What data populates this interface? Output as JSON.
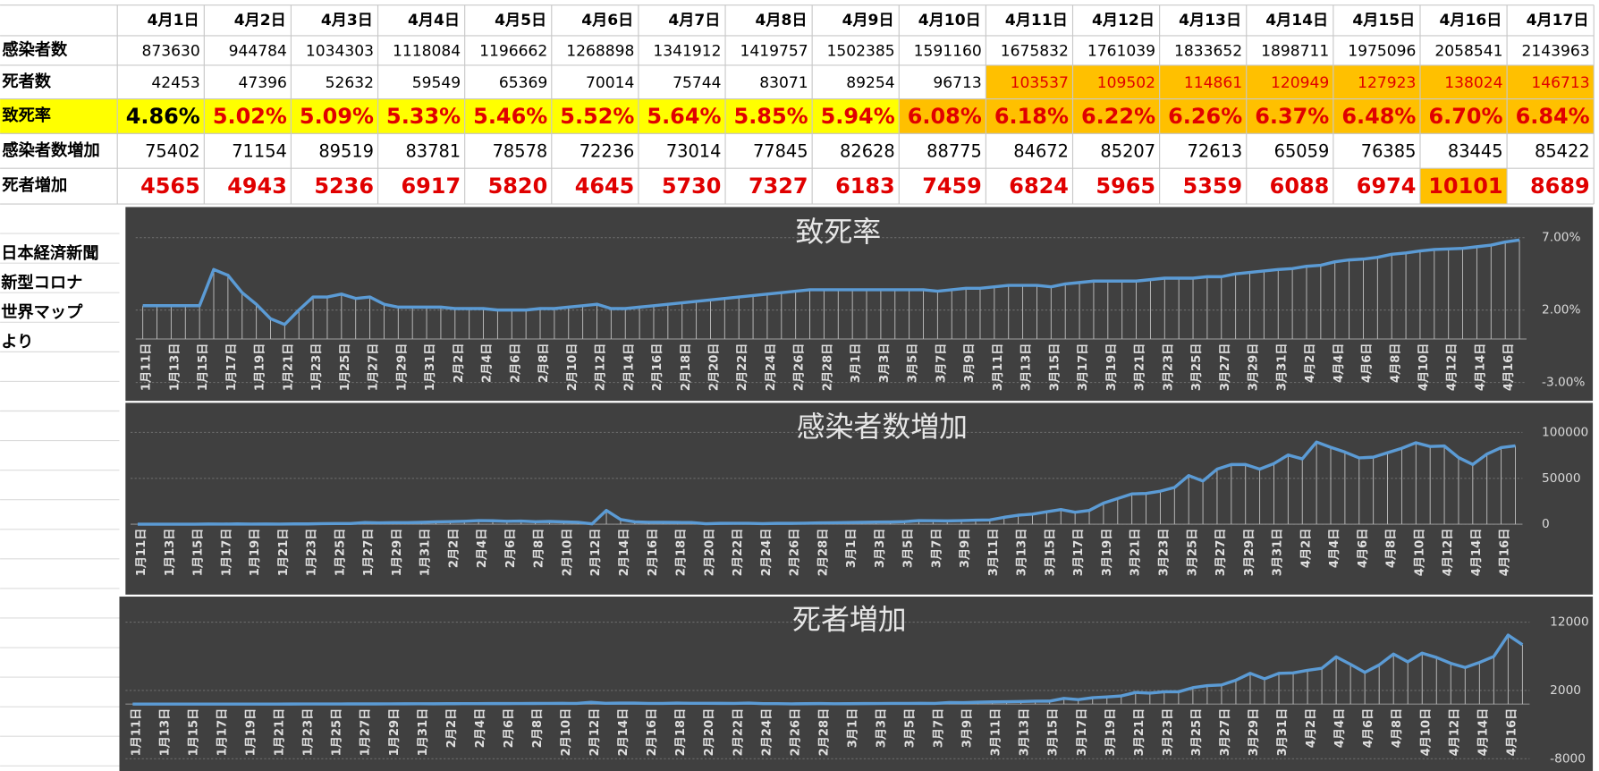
{
  "table": {
    "header": [
      "4月1日",
      "4月2日",
      "4月3日",
      "4月4日",
      "4月5日",
      "4月6日",
      "4月7日",
      "4月8日",
      "4月9日",
      "4月10日",
      "4月11日",
      "4月12日",
      "4月13日",
      "4月14日",
      "4月15日",
      "4月16日",
      "4月17日"
    ],
    "rows": [
      {
        "label": "感染者数",
        "values": [
          873630,
          944784,
          1034303,
          1118084,
          1196662,
          1268898,
          1341912,
          1419757,
          1502385,
          1591160,
          1675832,
          1761039,
          1833652,
          1898711,
          1975096,
          2058541,
          2143963
        ]
      },
      {
        "label": "死者数",
        "values": [
          42453,
          47396,
          52632,
          59549,
          65369,
          70014,
          75744,
          83071,
          89254,
          96713,
          103537,
          109502,
          114861,
          120949,
          127923,
          138024,
          146713
        ]
      },
      {
        "label": "致死率",
        "values": [
          "4.86%",
          "5.02%",
          "5.09%",
          "5.33%",
          "5.46%",
          "5.52%",
          "5.64%",
          "5.85%",
          "5.94%",
          "6.08%",
          "6.18%",
          "6.22%",
          "6.26%",
          "6.37%",
          "6.48%",
          "6.70%",
          "6.84%"
        ]
      },
      {
        "label": "感染者数増加",
        "values": [
          75402,
          71154,
          89519,
          83781,
          78578,
          72236,
          73014,
          77845,
          82628,
          88775,
          84672,
          85207,
          72613,
          65059,
          76385,
          83445,
          85422
        ]
      },
      {
        "label": "死者増加",
        "values": [
          4565,
          4943,
          5236,
          6917,
          5820,
          4645,
          5730,
          7327,
          6183,
          7459,
          6824,
          5965,
          5359,
          6088,
          6974,
          10101,
          8689
        ]
      }
    ]
  },
  "note": [
    "日本経済新聞",
    "新型コロナ",
    "世界マップ",
    "より"
  ],
  "chart_data": [
    {
      "type": "line",
      "title": "致死率",
      "categories": [
        "1月11日",
        null,
        "1月13日",
        null,
        "1月15日",
        null,
        "1月17日",
        null,
        "1月19日",
        null,
        "1月21日",
        null,
        "1月23日",
        null,
        "1月25日",
        null,
        "1月27日",
        null,
        "1月29日",
        null,
        "1月31日",
        null,
        "2月2日",
        null,
        "2月4日",
        null,
        "2月6日",
        null,
        "2月8日",
        null,
        "2月10日",
        null,
        "2月12日",
        null,
        "2月14日",
        null,
        "2月16日",
        null,
        "2月18日",
        null,
        "2月20日",
        null,
        "2月22日",
        null,
        "2月24日",
        null,
        "2月26日",
        null,
        "2月28日",
        null,
        "3月1日",
        null,
        "3月3日",
        null,
        "3月5日",
        null,
        "3月7日",
        null,
        "3月9日",
        null,
        "3月11日",
        null,
        "3月13日",
        null,
        "3月15日",
        null,
        "3月17日",
        null,
        "3月19日",
        null,
        "3月21日",
        null,
        "3月23日",
        null,
        "3月25日",
        null,
        "3月27日",
        null,
        "3月29日",
        null,
        "3月31日",
        null,
        "4月2日",
        null,
        "4月4日",
        null,
        "4月6日",
        null,
        "4月8日",
        null,
        "4月10日",
        null,
        "4月12日",
        null,
        "4月14日",
        null,
        "4月16日",
        null
      ],
      "series": [
        {
          "color": "#5b9bd5",
          "values": [
            2.3,
            2.3,
            2.3,
            2.3,
            2.3,
            4.8,
            4.4,
            3.2,
            2.4,
            1.4,
            1.0,
            2.0,
            2.9,
            2.9,
            3.1,
            2.8,
            2.9,
            2.4,
            2.2,
            2.2,
            2.2,
            2.2,
            2.1,
            2.1,
            2.1,
            2.0,
            2.0,
            2.0,
            2.1,
            2.1,
            2.2,
            2.3,
            2.4,
            2.1,
            2.1,
            2.2,
            2.3,
            2.4,
            2.5,
            2.6,
            2.7,
            2.8,
            2.9,
            3.0,
            3.1,
            3.2,
            3.3,
            3.4,
            3.4,
            3.4,
            3.4,
            3.4,
            3.4,
            3.4,
            3.4,
            3.4,
            3.3,
            3.4,
            3.5,
            3.5,
            3.6,
            3.7,
            3.7,
            3.7,
            3.6,
            3.8,
            3.9,
            4.0,
            4.0,
            4.0,
            4.0,
            4.1,
            4.2,
            4.2,
            4.2,
            4.3,
            4.3,
            4.5,
            4.6,
            4.7,
            4.8,
            4.86,
            5.02,
            5.09,
            5.33,
            5.46,
            5.52,
            5.64,
            5.85,
            5.94,
            6.08,
            6.18,
            6.22,
            6.26,
            6.37,
            6.48,
            6.7,
            6.84
          ]
        }
      ],
      "ylim": [
        -3,
        7
      ],
      "yticks": [
        {
          "value": -3,
          "label": "-3.00%"
        },
        {
          "value": 2,
          "label": "2.00%"
        },
        {
          "value": 7,
          "label": "7.00%"
        }
      ],
      "grid": true
    },
    {
      "type": "line",
      "title": "感染者数増加",
      "categories": [
        "1月11日",
        null,
        "1月13日",
        null,
        "1月15日",
        null,
        "1月17日",
        null,
        "1月19日",
        null,
        "1月21日",
        null,
        "1月23日",
        null,
        "1月25日",
        null,
        "1月27日",
        null,
        "1月29日",
        null,
        "1月31日",
        null,
        "2月2日",
        null,
        "2月4日",
        null,
        "2月6日",
        null,
        "2月8日",
        null,
        "2月10日",
        null,
        "2月12日",
        null,
        "2月14日",
        null,
        "2月16日",
        null,
        "2月18日",
        null,
        "2月20日",
        null,
        "2月22日",
        null,
        "2月24日",
        null,
        "2月26日",
        null,
        "2月28日",
        null,
        "3月1日",
        null,
        "3月3日",
        null,
        "3月5日",
        null,
        "3月7日",
        null,
        "3月9日",
        null,
        "3月11日",
        null,
        "3月13日",
        null,
        "3月15日",
        null,
        "3月17日",
        null,
        "3月19日",
        null,
        "3月21日",
        null,
        "3月23日",
        null,
        "3月25日",
        null,
        "3月27日",
        null,
        "3月29日",
        null,
        "3月31日",
        null,
        "4月2日",
        null,
        "4月4日",
        null,
        "4月6日",
        null,
        "4月8日",
        null,
        "4月10日",
        null,
        "4月12日",
        null,
        "4月14日",
        null,
        "4月16日",
        null
      ],
      "series": [
        {
          "color": "#5b9bd5",
          "values": [
            0,
            0,
            0,
            0,
            0,
            200,
            100,
            300,
            100,
            200,
            100,
            300,
            300,
            600,
            700,
            700,
            1800,
            1500,
            1700,
            1700,
            2000,
            2600,
            2800,
            3200,
            3900,
            3700,
            3200,
            3400,
            2700,
            3000,
            2500,
            2100,
            400,
            15000,
            5100,
            2600,
            2100,
            2000,
            1900,
            1800,
            500,
            900,
            1000,
            1000,
            600,
            900,
            900,
            1100,
            1500,
            1600,
            1800,
            2000,
            2300,
            2400,
            2800,
            3900,
            3800,
            3600,
            3900,
            4400,
            4600,
            7500,
            9800,
            11000,
            13500,
            16000,
            13000,
            15000,
            23000,
            28000,
            33000,
            33500,
            36000,
            40000,
            53000,
            47000,
            60000,
            65000,
            65000,
            60000,
            66000,
            75402,
            71154,
            89519,
            83781,
            78578,
            72236,
            73014,
            77845,
            82628,
            88775,
            84672,
            85207,
            72613,
            65059,
            76385,
            83445,
            85422
          ]
        }
      ],
      "ylim": [
        0,
        100000
      ],
      "yticks": [
        0,
        50000,
        100000
      ],
      "grid": true
    },
    {
      "type": "line",
      "title": "死者増加",
      "categories": [
        "1月11日",
        null,
        "1月13日",
        null,
        "1月15日",
        null,
        "1月17日",
        null,
        "1月19日",
        null,
        "1月21日",
        null,
        "1月23日",
        null,
        "1月25日",
        null,
        "1月27日",
        null,
        "1月29日",
        null,
        "1月31日",
        null,
        "2月2日",
        null,
        "2月4日",
        null,
        "2月6日",
        null,
        "2月8日",
        null,
        "2月10日",
        null,
        "2月12日",
        null,
        "2月14日",
        null,
        "2月16日",
        null,
        "2月18日",
        null,
        "2月20日",
        null,
        "2月22日",
        null,
        "2月24日",
        null,
        "2月26日",
        null,
        "2月28日",
        null,
        "3月1日",
        null,
        "3月3日",
        null,
        "3月5日",
        null,
        "3月7日",
        null,
        "3月9日",
        null,
        "3月11日",
        null,
        "3月13日",
        null,
        "3月15日",
        null,
        "3月17日",
        null,
        "3月19日",
        null,
        "3月21日",
        null,
        "3月23日",
        null,
        "3月25日",
        null,
        "3月27日",
        null,
        "3月29日",
        null,
        "3月31日",
        null,
        "4月2日",
        null,
        "4月4日",
        null,
        "4月6日",
        null,
        "4月8日",
        null,
        "4月10日",
        null,
        "4月12日",
        null,
        "4月14日",
        null,
        "4月16日",
        null
      ],
      "series": [
        {
          "color": "#5b9bd5",
          "values": [
            0,
            0,
            0,
            0,
            0,
            0,
            1,
            0,
            1,
            1,
            3,
            8,
            16,
            15,
            15,
            24,
            26,
            26,
            38,
            43,
            46,
            45,
            57,
            64,
            65,
            73,
            73,
            86,
            89,
            97,
            108,
            97,
            254,
            121,
            143,
            142,
            105,
            98,
            139,
            112,
            118,
            109,
            97,
            150,
            71,
            64,
            37,
            58,
            74,
            46,
            58,
            73,
            80,
            104,
            98,
            108,
            101,
            229,
            209,
            274,
            323,
            343,
            374,
            430,
            433,
            840,
            651,
            938,
            1050,
            1200,
            1700,
            1600,
            1800,
            1800,
            2400,
            2700,
            2800,
            3500,
            4500,
            3700,
            4500,
            4565,
            4943,
            5236,
            6917,
            5820,
            4645,
            5730,
            7327,
            6183,
            7459,
            6824,
            5965,
            5359,
            6088,
            6974,
            10101,
            8689
          ]
        }
      ],
      "ylim": [
        -8000,
        12000
      ],
      "yticks": [
        -8000,
        2000,
        12000
      ],
      "grid": true
    }
  ]
}
